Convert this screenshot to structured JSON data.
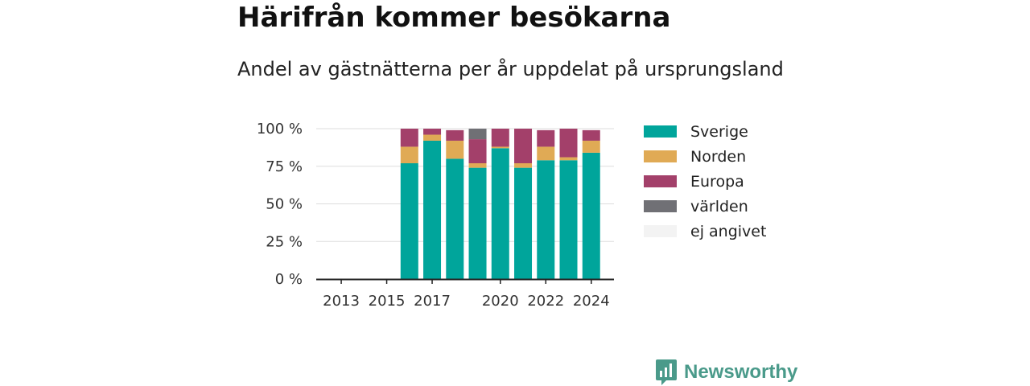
{
  "title": "Härifrån kommer besökarna",
  "subtitle": "Andel av gästnätterna per år uppdelat på ursprungsland",
  "brand": {
    "name": "Newsworthy",
    "icon": "newsworthy-logo-icon"
  },
  "chart_data": {
    "type": "bar",
    "stacked": true,
    "x": [
      2013,
      2014,
      2015,
      2016,
      2017,
      2018,
      2019,
      2020,
      2021,
      2022,
      2023,
      2024
    ],
    "x_tick_labels": [
      "2013",
      "2015",
      "2017",
      "2020",
      "2022",
      "2024"
    ],
    "x_tick_values": [
      2013,
      2015,
      2017,
      2020,
      2022,
      2024
    ],
    "y_tick_labels": [
      "0 %",
      "25 %",
      "50 %",
      "75 %",
      "100 %"
    ],
    "y_tick_values": [
      0,
      25,
      50,
      75,
      100
    ],
    "ylim": [
      0,
      100
    ],
    "grid": true,
    "legend_position": "right",
    "series": [
      {
        "name": "Sverige",
        "color": "#00a59b",
        "values": [
          null,
          null,
          null,
          77,
          92,
          80,
          74,
          87,
          74,
          79,
          79,
          84
        ]
      },
      {
        "name": "Norden",
        "color": "#e0aa55",
        "values": [
          null,
          null,
          null,
          11,
          4,
          12,
          3,
          1,
          3,
          9,
          2,
          8
        ]
      },
      {
        "name": "Europa",
        "color": "#a3406a",
        "values": [
          null,
          null,
          null,
          12,
          4,
          7,
          16,
          12,
          23,
          11,
          19,
          7
        ]
      },
      {
        "name": "världen",
        "color": "#707075",
        "values": [
          null,
          null,
          null,
          0,
          0,
          0,
          7,
          0,
          0,
          0,
          0,
          0
        ]
      },
      {
        "name": "ej angivet",
        "color": "#f3f3f3",
        "values": [
          null,
          null,
          null,
          0,
          0,
          0,
          0,
          0,
          0,
          0,
          0,
          0
        ]
      }
    ]
  }
}
